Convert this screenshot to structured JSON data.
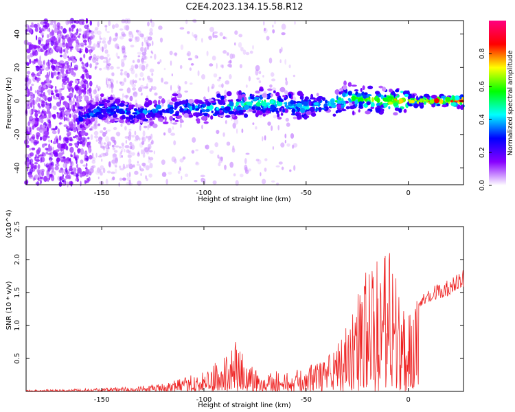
{
  "title": "C2E4.2023.134.15.58.R12",
  "chart_data": [
    {
      "type": "heatmap",
      "title": "C2E4.2023.134.15.58.R12",
      "xlabel": "Height of straight line (km)",
      "ylabel": "Frequency (Hz)",
      "xlim": [
        -187,
        27
      ],
      "ylim": [
        -50,
        48
      ],
      "xticks": [
        -150,
        -100,
        -50,
        0
      ],
      "yticks": [
        -40,
        -20,
        0,
        20,
        40
      ],
      "colorbar": {
        "label": "Normalized spectral amplitude",
        "range": [
          0,
          1
        ],
        "ticks": [
          "0.0",
          "0.2",
          "0.4",
          "0.6",
          "0.8"
        ],
        "tick_values": [
          0,
          0.2,
          0.4,
          0.6,
          0.8
        ],
        "colors": [
          "#ffffff",
          "#8800ff",
          "#0000ff",
          "#00ffff",
          "#00ff00",
          "#ffff00",
          "#ff0000",
          "#ff0080"
        ]
      },
      "ridge": {
        "x": [
          -160,
          -150,
          -140,
          -130,
          -120,
          -110,
          -100,
          -90,
          -80,
          -70,
          -60,
          -50,
          -40,
          -30,
          -20,
          -10,
          0,
          10,
          20,
          27
        ],
        "frequency_hz": [
          -10,
          -5,
          -6,
          -7,
          -5,
          -4,
          -5,
          -3,
          -2,
          -1,
          -2,
          -4,
          -2,
          2,
          1,
          0,
          0,
          0,
          0,
          0
        ],
        "amplitude": [
          0.3,
          0.35,
          0.35,
          0.35,
          0.35,
          0.38,
          0.4,
          0.45,
          0.5,
          0.5,
          0.45,
          0.45,
          0.45,
          0.55,
          0.6,
          0.7,
          0.75,
          0.8,
          0.85,
          0.9
        ]
      },
      "grid": false
    },
    {
      "type": "line",
      "xlabel": "Height of straight line (km)",
      "ylabel": "SNR (10 * v/v)",
      "y_multiplier": "(x10^4)",
      "xlim": [
        -187,
        27
      ],
      "ylim": [
        0,
        2.5
      ],
      "xticks": [
        -150,
        -100,
        -50,
        0
      ],
      "yticks": [
        0.5,
        1.0,
        1.5,
        2.0,
        2.5
      ],
      "ytick_labels": [
        "0.5",
        "1.0",
        "1.5",
        "2.0",
        "2.5"
      ],
      "color": "#ee2222",
      "envelope": {
        "x": [
          -187,
          -170,
          -150,
          -130,
          -120,
          -110,
          -100,
          -90,
          -85,
          -80,
          -70,
          -60,
          -50,
          -40,
          -35,
          -30,
          -25,
          -20,
          -15,
          -10,
          -5,
          0,
          5,
          10,
          20,
          27
        ],
        "y": [
          0.02,
          0.03,
          0.05,
          0.08,
          0.12,
          0.2,
          0.3,
          0.5,
          0.8,
          0.5,
          0.3,
          0.3,
          0.35,
          0.5,
          0.7,
          1.0,
          1.4,
          1.8,
          2.0,
          2.3,
          1.6,
          1.5,
          1.5,
          1.6,
          1.7,
          1.85
        ]
      },
      "grid": false
    }
  ]
}
